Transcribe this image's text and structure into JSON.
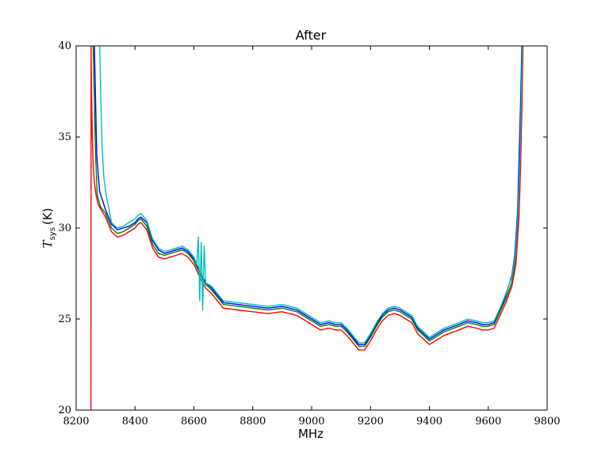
{
  "chart_data": {
    "type": "line",
    "title": "After",
    "xlabel": "MHz",
    "ylabel": {
      "symbol": "T",
      "subscript": "sys",
      "unit": "(K)"
    },
    "xlim": [
      8200,
      9800
    ],
    "ylim": [
      20,
      40
    ],
    "x_ticks": [
      8200,
      8400,
      8600,
      8800,
      9000,
      9200,
      9400,
      9600,
      9800
    ],
    "y_ticks": [
      20,
      25,
      30,
      35,
      40
    ],
    "grid": false,
    "legend": "none",
    "series": [
      {
        "color": "#0000ff",
        "x": [
          8262,
          8266,
          8270,
          8280,
          8300,
          8320,
          8340,
          8360,
          8380,
          8400,
          8410,
          8420,
          8440,
          8460,
          8480,
          8500,
          8520,
          8540,
          8560,
          8580,
          8600,
          8620,
          8640,
          8660,
          8680,
          8700,
          8750,
          8800,
          8850,
          8900,
          8950,
          9000,
          9030,
          9060,
          9080,
          9100,
          9120,
          9140,
          9160,
          9180,
          9200,
          9220,
          9240,
          9260,
          9280,
          9300,
          9320,
          9340,
          9360,
          9380,
          9400,
          9420,
          9450,
          9500,
          9530,
          9560,
          9580,
          9600,
          9620,
          9640,
          9660,
          9680,
          9690,
          9700,
          9705,
          9710,
          9714
        ],
        "y": [
          40,
          37,
          34,
          32,
          31,
          30.2,
          29.9,
          30,
          30.1,
          30.3,
          30.5,
          30.6,
          30.3,
          29.3,
          28.8,
          28.6,
          28.7,
          28.8,
          28.9,
          28.7,
          28.3,
          27.6,
          27,
          26.7,
          26.3,
          25.9,
          25.8,
          25.7,
          25.6,
          25.7,
          25.5,
          25,
          24.7,
          24.8,
          24.7,
          24.7,
          24.4,
          24,
          23.6,
          23.6,
          24.1,
          24.7,
          25.2,
          25.5,
          25.6,
          25.5,
          25.3,
          25.1,
          24.5,
          24.2,
          23.9,
          24.1,
          24.4,
          24.7,
          24.9,
          24.8,
          24.7,
          24.7,
          24.8,
          25.5,
          26.3,
          27.4,
          28.5,
          31,
          34,
          37,
          40
        ]
      },
      {
        "color": "#008000",
        "x": [
          8258,
          8262,
          8266,
          8272,
          8282,
          8300,
          8320,
          8340,
          8360,
          8380,
          8400,
          8410,
          8420,
          8440,
          8460,
          8480,
          8500,
          8520,
          8540,
          8560,
          8580,
          8600,
          8620,
          8640,
          8660,
          8680,
          8700,
          8750,
          8800,
          8850,
          8900,
          8950,
          9000,
          9030,
          9060,
          9080,
          9100,
          9120,
          9140,
          9160,
          9180,
          9200,
          9220,
          9240,
          9260,
          9280,
          9300,
          9320,
          9340,
          9360,
          9380,
          9400,
          9420,
          9450,
          9500,
          9530,
          9560,
          9580,
          9600,
          9620,
          9640,
          9660,
          9680,
          9692,
          9702,
          9708,
          9712,
          9716
        ],
        "y": [
          40,
          37,
          34,
          31.8,
          31.2,
          30.8,
          30,
          29.7,
          29.8,
          30,
          30.2,
          30.4,
          30.5,
          30.1,
          29.1,
          28.6,
          28.5,
          28.6,
          28.7,
          28.8,
          28.6,
          28.2,
          27.5,
          26.9,
          26.6,
          26.2,
          25.8,
          25.7,
          25.6,
          25.5,
          25.6,
          25.4,
          24.9,
          24.6,
          24.7,
          24.6,
          24.6,
          24.3,
          23.9,
          23.5,
          23.5,
          24,
          24.6,
          25.1,
          25.4,
          25.5,
          25.4,
          25.2,
          25,
          24.4,
          24.1,
          23.8,
          24,
          24.3,
          24.6,
          24.8,
          24.7,
          24.6,
          24.6,
          24.7,
          25.4,
          26.1,
          27,
          28.2,
          30.5,
          33.5,
          36.5,
          40
        ]
      },
      {
        "color": "#ff0000",
        "x": [
          8250,
          8251,
          8252,
          8255,
          8258,
          8262,
          8268,
          8275,
          8285,
          8300,
          8320,
          8340,
          8360,
          8380,
          8400,
          8410,
          8420,
          8440,
          8460,
          8480,
          8500,
          8520,
          8540,
          8560,
          8580,
          8600,
          8620,
          8640,
          8660,
          8680,
          8700,
          8750,
          8800,
          8850,
          8900,
          8950,
          9000,
          9030,
          9060,
          9080,
          9100,
          9120,
          9140,
          9160,
          9180,
          9200,
          9220,
          9240,
          9260,
          9280,
          9300,
          9320,
          9340,
          9360,
          9380,
          9400,
          9420,
          9450,
          9500,
          9530,
          9560,
          9580,
          9600,
          9620,
          9640,
          9660,
          9680,
          9694,
          9704,
          9710,
          9714,
          9718
        ],
        "y": [
          20,
          40,
          38,
          35,
          33.5,
          32.5,
          31.8,
          31.3,
          31,
          30.6,
          29.8,
          29.5,
          29.6,
          29.8,
          30,
          30.2,
          30.3,
          29.9,
          28.9,
          28.4,
          28.3,
          28.4,
          28.5,
          28.6,
          28.4,
          28,
          27.3,
          26.7,
          26.4,
          26,
          25.6,
          25.5,
          25.4,
          25.3,
          25.4,
          25.2,
          24.7,
          24.4,
          24.5,
          24.4,
          24.4,
          24.1,
          23.7,
          23.3,
          23.3,
          23.8,
          24.4,
          24.9,
          25.2,
          25.3,
          25.2,
          25,
          24.8,
          24.2,
          23.9,
          23.6,
          23.8,
          24.1,
          24.4,
          24.6,
          24.5,
          24.4,
          24.4,
          24.5,
          25.2,
          25.9,
          26.8,
          28,
          30.5,
          33.5,
          36.5,
          40
        ]
      },
      {
        "color": "#00bfbf",
        "x": [
          8280,
          8284,
          8288,
          8294,
          8302,
          8312,
          8320,
          8340,
          8360,
          8380,
          8400,
          8410,
          8420,
          8440,
          8460,
          8480,
          8500,
          8520,
          8540,
          8560,
          8580,
          8600,
          8610,
          8615,
          8620,
          8625,
          8630,
          8635,
          8640,
          8660,
          8680,
          8700,
          8750,
          8800,
          8850,
          8900,
          8950,
          9000,
          9030,
          9060,
          9080,
          9100,
          9120,
          9140,
          9160,
          9180,
          9200,
          9220,
          9240,
          9260,
          9280,
          9300,
          9320,
          9340,
          9360,
          9380,
          9400,
          9420,
          9450,
          9500,
          9530,
          9560,
          9580,
          9600,
          9620,
          9640,
          9660,
          9680,
          9692,
          9702,
          9708,
          9712,
          9716
        ],
        "y": [
          40,
          37,
          34.5,
          32.8,
          31.8,
          31,
          30.3,
          30,
          30.1,
          30.3,
          30.5,
          30.7,
          30.8,
          30.4,
          29.4,
          28.9,
          28.7,
          28.8,
          28.9,
          29,
          28.8,
          28.4,
          28,
          29.5,
          26,
          29.2,
          25.5,
          29,
          27,
          26.8,
          26.4,
          26,
          25.9,
          25.8,
          25.7,
          25.8,
          25.6,
          25.1,
          24.8,
          24.9,
          24.8,
          24.8,
          24.5,
          24.1,
          23.7,
          23.7,
          24.2,
          24.8,
          25.3,
          25.6,
          25.7,
          25.6,
          25.4,
          25.2,
          24.6,
          24.3,
          24,
          24.2,
          24.5,
          24.8,
          25,
          24.9,
          24.8,
          24.8,
          24.9,
          25.6,
          26.4,
          27.3,
          28.5,
          31,
          34,
          37,
          40
        ]
      }
    ]
  }
}
